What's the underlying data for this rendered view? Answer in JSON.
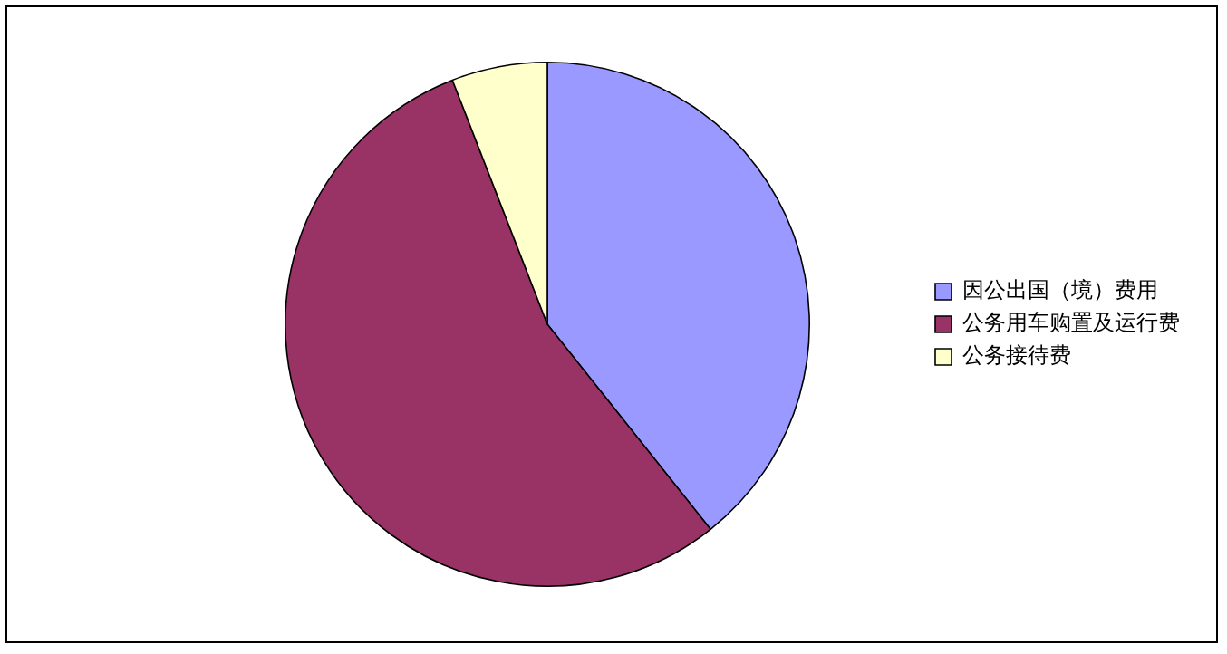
{
  "chart_data": {
    "type": "pie",
    "categories": [
      "因公出国（境）费用",
      "公务用车购置及运行费",
      "公务接待费"
    ],
    "values": [
      39.3,
      54.8,
      5.9
    ],
    "colors": [
      "#9999ff",
      "#993366",
      "#ffffcc"
    ],
    "legend": "right"
  }
}
